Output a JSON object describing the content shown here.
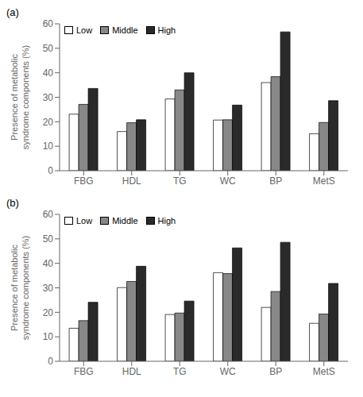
{
  "chart_data": [
    {
      "type": "bar",
      "title": "(a)",
      "ylabel": "Presence of metabolic\nsyndrome components (%)",
      "categories": [
        "FBG",
        "HDL",
        "TG",
        "WC",
        "BP",
        "MetS"
      ],
      "series": [
        {
          "name": "Low",
          "color": "#ffffff",
          "values": [
            23.1,
            16.0,
            29.3,
            20.7,
            36.0,
            15.1
          ]
        },
        {
          "name": "Middle",
          "color": "#888888",
          "values": [
            27.1,
            19.6,
            33.0,
            20.8,
            38.4,
            19.7
          ]
        },
        {
          "name": "High",
          "color": "#2a2a2a",
          "values": [
            33.6,
            20.8,
            40.0,
            26.8,
            56.7,
            28.6
          ]
        }
      ],
      "ylim": [
        0,
        60
      ],
      "yticks": [
        0,
        10,
        20,
        30,
        40,
        50,
        60
      ],
      "legend": "upper left",
      "grid": false
    },
    {
      "type": "bar",
      "title": "(b)",
      "ylabel": "Presence of metabolic\nsyndrome components (%)",
      "categories": [
        "FBG",
        "HDL",
        "TG",
        "WC",
        "BP",
        "MetS"
      ],
      "series": [
        {
          "name": "Low",
          "color": "#ffffff",
          "values": [
            13.5,
            30.1,
            19.1,
            36.2,
            22.0,
            15.5
          ]
        },
        {
          "name": "Middle",
          "color": "#888888",
          "values": [
            16.6,
            32.6,
            19.7,
            35.8,
            28.5,
            19.3
          ]
        },
        {
          "name": "High",
          "color": "#2a2a2a",
          "values": [
            24.1,
            38.8,
            24.6,
            46.3,
            48.6,
            31.8
          ]
        }
      ],
      "ylim": [
        0,
        60
      ],
      "yticks": [
        0,
        10,
        20,
        30,
        40,
        50,
        60
      ],
      "legend": "upper left",
      "grid": false
    }
  ]
}
